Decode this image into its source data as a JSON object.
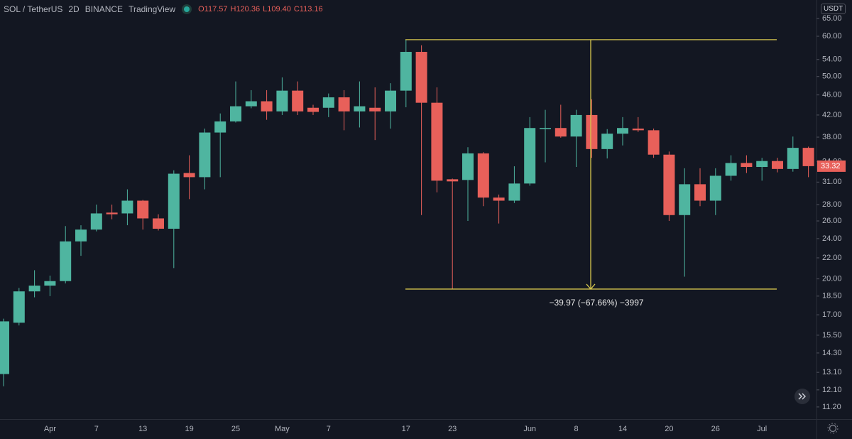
{
  "header": {
    "symbol": "SOL / TetherUS",
    "interval": "2D",
    "exchange": "BINANCE",
    "source": "TradingView",
    "ohlc": [
      "O117.57",
      "H120.36",
      "L109.40",
      "C113.16"
    ]
  },
  "currency": "USDT",
  "chart_data": {
    "type": "candlestick",
    "log_scale": true,
    "grid": false,
    "up_color": "#4fb5a0",
    "down_color": "#e8605a",
    "categories": [
      null,
      null,
      null,
      "Apr",
      null,
      null,
      "7",
      null,
      null,
      "13",
      null,
      null,
      "19",
      null,
      null,
      "25",
      null,
      null,
      "May",
      null,
      null,
      "7",
      null,
      null,
      null,
      null,
      "17",
      null,
      null,
      "23",
      null,
      null,
      null,
      null,
      "Jun",
      null,
      null,
      "8",
      null,
      null,
      "14",
      null,
      null,
      "20",
      null,
      null,
      "26",
      null,
      null,
      "Jul",
      null,
      null,
      null
    ],
    "open": [
      13.0,
      16.4,
      18.9,
      19.4,
      19.8,
      23.7,
      25.0,
      27.0,
      26.9,
      28.5,
      26.3,
      25.1,
      32.3,
      31.7,
      38.8,
      40.8,
      43.7,
      44.7,
      42.7,
      46.9,
      43.4,
      43.4,
      45.5,
      42.7,
      43.4,
      42.7,
      46.9,
      55.9,
      44.4,
      31.4,
      31.3,
      35.3,
      28.9,
      28.5,
      30.8,
      39.4,
      39.6,
      38.1,
      42.0,
      36.0,
      38.6,
      39.5,
      39.2,
      35.1,
      26.7,
      30.7,
      28.5,
      31.9,
      33.8,
      33.2,
      34.1,
      32.9,
      36.2
    ],
    "high": [
      16.7,
      19.2,
      20.8,
      20.3,
      25.4,
      25.5,
      28.0,
      28.0,
      30.0,
      28.6,
      26.8,
      32.7,
      35.0,
      39.5,
      42.3,
      48.9,
      47.0,
      47.0,
      49.8,
      48.9,
      44.0,
      46.3,
      47.0,
      48.9,
      47.6,
      48.5,
      59.07,
      57.6,
      47.6,
      31.5,
      36.3,
      35.5,
      29.3,
      33.3,
      41.6,
      43.0,
      44.0,
      43.0,
      45.1,
      39.4,
      41.6,
      41.6,
      39.5,
      35.6,
      33.0,
      33.0,
      33.0,
      35.0,
      35.0,
      34.6,
      34.6,
      38.1,
      36.4
    ],
    "low": [
      12.3,
      16.2,
      18.4,
      18.5,
      19.6,
      22.2,
      24.8,
      26.2,
      25.5,
      25.0,
      24.9,
      21.0,
      28.7,
      30.0,
      31.7,
      40.6,
      43.3,
      41.1,
      42.0,
      42.0,
      42.0,
      41.6,
      39.2,
      39.7,
      37.5,
      39.5,
      43.5,
      26.7,
      29.6,
      19.1,
      26.0,
      27.8,
      25.7,
      28.2,
      30.5,
      33.9,
      37.9,
      33.2,
      34.6,
      34.5,
      36.6,
      38.9,
      34.6,
      26.0,
      20.2,
      27.8,
      26.7,
      31.2,
      32.3,
      31.2,
      32.4,
      32.5,
      31.7
    ],
    "close": [
      16.5,
      18.9,
      19.4,
      19.8,
      23.7,
      25.0,
      26.9,
      26.8,
      28.5,
      26.3,
      25.1,
      32.2,
      31.7,
      38.8,
      40.8,
      43.7,
      44.7,
      42.7,
      46.9,
      42.7,
      42.6,
      45.5,
      42.7,
      43.7,
      42.7,
      46.9,
      55.9,
      44.4,
      31.2,
      31.1,
      35.3,
      28.9,
      28.5,
      30.8,
      39.6,
      39.6,
      38.1,
      42.0,
      36.0,
      38.6,
      39.6,
      39.2,
      35.1,
      26.7,
      30.7,
      28.5,
      31.9,
      33.8,
      33.2,
      34.1,
      32.9,
      36.2,
      33.32
    ],
    "ylim": [
      10.6,
      70.7
    ],
    "yticks": [
      {
        "value": 65,
        "label": "65.00"
      },
      {
        "value": 60,
        "label": "60.00"
      },
      {
        "value": 54,
        "label": "54.00"
      },
      {
        "value": 50,
        "label": "50.00"
      },
      {
        "value": 46,
        "label": "46.00"
      },
      {
        "value": 42,
        "label": "42.00"
      },
      {
        "value": 38,
        "label": "38.00"
      },
      {
        "value": 34,
        "label": "34.00"
      },
      {
        "value": 31,
        "label": "31.00"
      },
      {
        "value": 28,
        "label": "28.00"
      },
      {
        "value": 26,
        "label": "26.00"
      },
      {
        "value": 24,
        "label": "24.00"
      },
      {
        "value": 22,
        "label": "22.00"
      },
      {
        "value": 20,
        "label": "20.00"
      },
      {
        "value": 18.5,
        "label": "18.50"
      },
      {
        "value": 17,
        "label": "17.00"
      },
      {
        "value": 15.5,
        "label": "15.50"
      },
      {
        "value": 14.3,
        "label": "14.30"
      },
      {
        "value": 13.1,
        "label": "13.10"
      },
      {
        "value": 12.1,
        "label": "12.10"
      },
      {
        "value": 11.2,
        "label": "11.20"
      }
    ],
    "measure": {
      "high": 59.07,
      "low": 19.1,
      "label": "−39.97 (−67.66%) −3997",
      "color": "#d6c64e"
    }
  }
}
